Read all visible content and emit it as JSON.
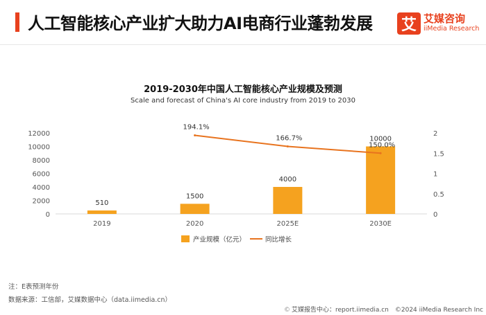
{
  "header": {
    "title": "人工智能核心产业扩大助力AI电商行业蓬勃发展",
    "accent_color": "#e8411e"
  },
  "logo": {
    "mark": "艾",
    "name_cn": "艾媒咨询",
    "name_en": "iiMedia Research"
  },
  "chart_data": {
    "type": "bar",
    "title": "2019-2030年中国人工智能核心产业规模及预测",
    "subtitle": "Scale and forecast of China's AI core industry from 2019 to 2030",
    "categories": [
      "2019",
      "2020",
      "2025E",
      "2030E"
    ],
    "bar_series": {
      "name": "产业规模（亿元）",
      "values": [
        510,
        1500,
        4000,
        10000
      ],
      "labels": [
        "510",
        "1500",
        "4000",
        "10000"
      ],
      "color": "#f5a21f"
    },
    "line_series": {
      "name": "同比增长",
      "values": [
        1.941,
        1.667,
        1.5
      ],
      "x_categories": [
        "2020",
        "2025E",
        "2030E"
      ],
      "labels": [
        "194.1%",
        "166.7%",
        "150.0%"
      ],
      "color": "#e8731e"
    },
    "y_left": {
      "ylim": [
        0,
        12000
      ],
      "ticks": [
        "0",
        "2000",
        "4000",
        "6000",
        "8000",
        "10000",
        "12000"
      ]
    },
    "y_right": {
      "ylim": [
        0,
        2
      ],
      "ticks": [
        "0",
        "0.5",
        "1",
        "1.5",
        "2"
      ]
    },
    "legend_placement": "bottom-center",
    "grid": false
  },
  "notes": {
    "note": "注：E表预测年份",
    "source": "数据来源：工信部，艾媒数据中心（data.iimedia.cn）"
  },
  "footer": {
    "icon": "copyright-report-icon",
    "text": "艾媒报告中心：report.iimedia.cn　©2024  iiMedia Research  Inc"
  }
}
